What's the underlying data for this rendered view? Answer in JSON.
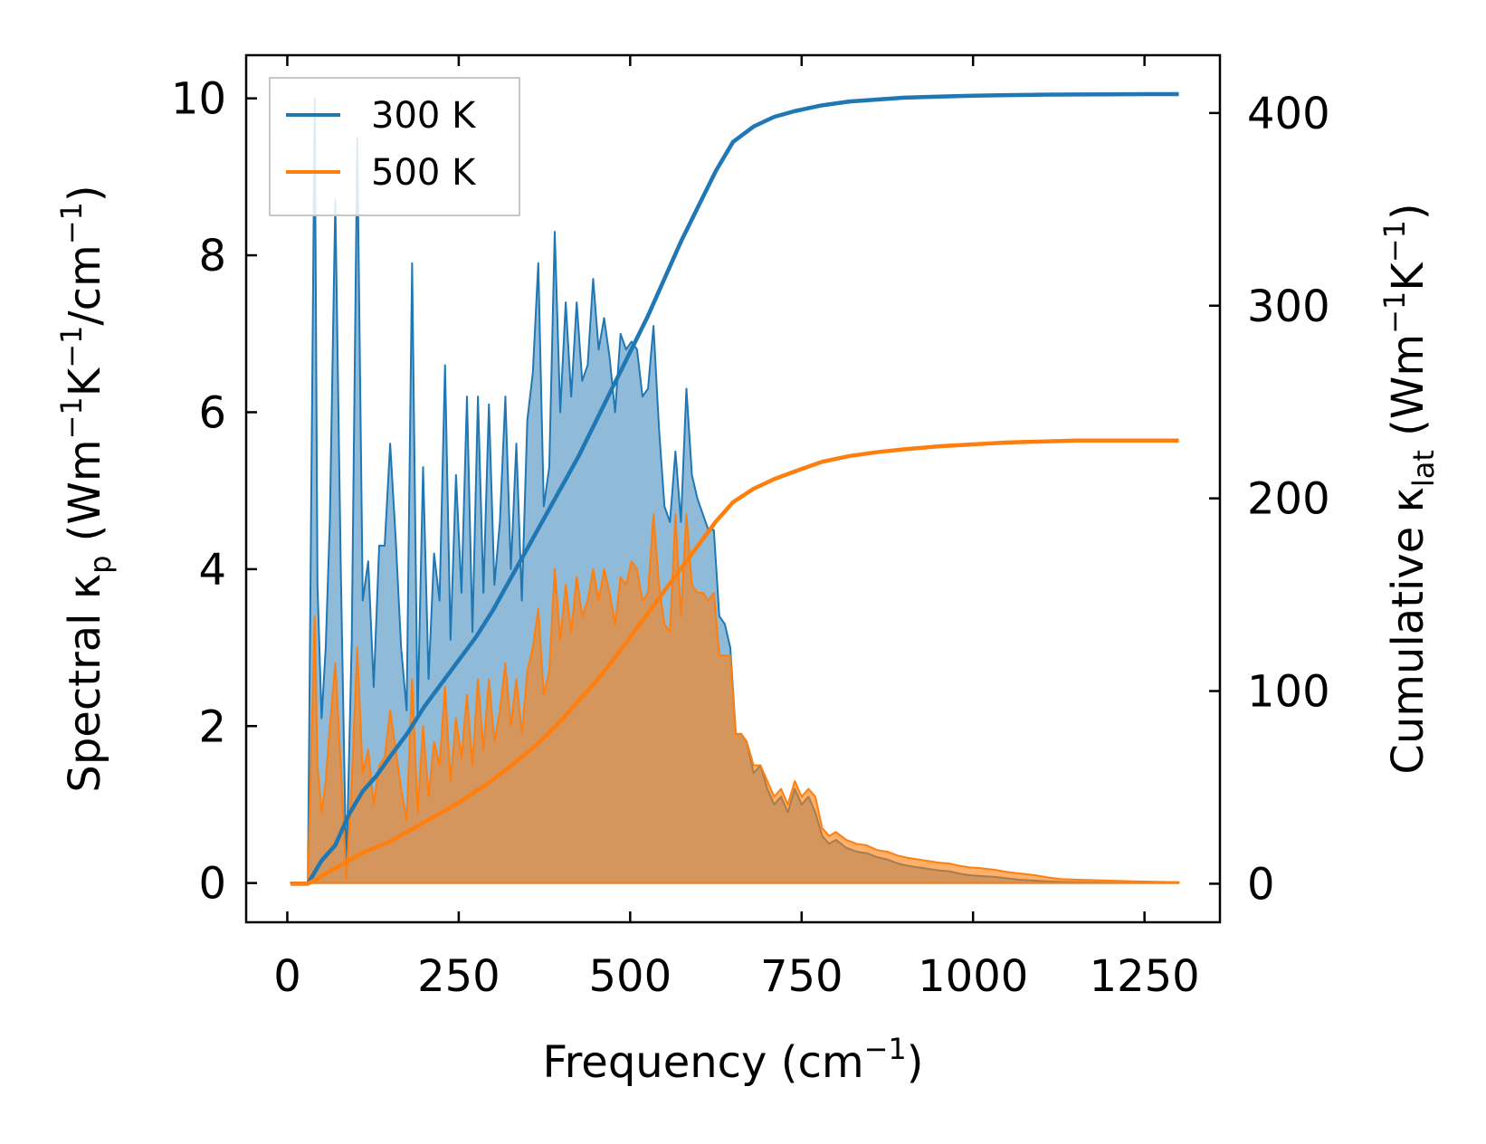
{
  "chart_data": {
    "type": "area",
    "xlabel": "Frequency (cm",
    "xlabel_sup": "−1",
    "xlabel_end": ")",
    "ylabel_left": {
      "pre": "Spectral κ",
      "sub": "p",
      "mid1": " (Wm",
      "sup1": "−1",
      "mid2": "K",
      "sup2": "−1",
      "mid3": "/cm",
      "sup3": "−1",
      "post": ")"
    },
    "ylabel_right": {
      "pre": "Cumulative κ",
      "sub": "lat",
      "mid1": " (Wm",
      "sup1": "−1",
      "mid2": "K",
      "sup2": "−1",
      "post": ")"
    },
    "xlim": [
      -60,
      1360
    ],
    "ylim_left": [
      -0.5,
      10.55
    ],
    "ylim_right": [
      -20,
      430
    ],
    "xticks": [
      0,
      250,
      500,
      750,
      1000,
      1250
    ],
    "xtick_labels": [
      "0",
      "250",
      "500",
      "750",
      "1000",
      "1250"
    ],
    "yticks_left": [
      0,
      2,
      4,
      6,
      8,
      10
    ],
    "ytick_labels_left": [
      "0",
      "2",
      "4",
      "6",
      "8",
      "10"
    ],
    "yticks_right": [
      0,
      100,
      200,
      300,
      400
    ],
    "ytick_labels_right": [
      "0",
      "100",
      "200",
      "300",
      "400"
    ],
    "legend": {
      "position": "upper-left",
      "entries": [
        {
          "label": "300 K",
          "color": "#1f77b4"
        },
        {
          "label": "500 K",
          "color": "#ff7f0e"
        }
      ]
    },
    "series": [
      {
        "name": "300 K",
        "color": "#1f77b4",
        "spectral": {
          "x": [
            5,
            30,
            40,
            44,
            50,
            56,
            62,
            70,
            78,
            86,
            94,
            102,
            110,
            118,
            126,
            134,
            142,
            150,
            158,
            166,
            174,
            182,
            190,
            198,
            206,
            214,
            222,
            230,
            238,
            246,
            254,
            262,
            270,
            278,
            286,
            294,
            302,
            310,
            318,
            326,
            334,
            342,
            350,
            358,
            366,
            374,
            382,
            390,
            398,
            406,
            414,
            422,
            430,
            438,
            446,
            454,
            462,
            470,
            478,
            486,
            494,
            502,
            510,
            518,
            526,
            534,
            542,
            550,
            558,
            566,
            574,
            582,
            590,
            598,
            606,
            614,
            622,
            630,
            638,
            646,
            654,
            662,
            670,
            680,
            690,
            700,
            710,
            720,
            730,
            740,
            750,
            760,
            770,
            780,
            790,
            800,
            815,
            830,
            845,
            860,
            875,
            890,
            905,
            920,
            935,
            950,
            965,
            980,
            995,
            1010,
            1030,
            1050,
            1070,
            1090,
            1110,
            1130,
            1160,
            1200,
            1240,
            1300
          ],
          "y": [
            0,
            0,
            10.0,
            3.8,
            2.1,
            3.0,
            4.6,
            8.7,
            4.0,
            0.1,
            3.1,
            9.5,
            3.6,
            4.1,
            2.5,
            4.3,
            4.3,
            5.6,
            4.4,
            3.0,
            2.2,
            7.9,
            2.1,
            5.3,
            2.6,
            4.2,
            3.6,
            6.6,
            3.1,
            5.2,
            3.7,
            6.2,
            3.2,
            6.2,
            3.7,
            6.1,
            3.8,
            4.6,
            6.2,
            4.0,
            5.6,
            3.6,
            5.9,
            6.5,
            7.9,
            4.8,
            5.3,
            8.3,
            6.0,
            7.4,
            6.2,
            7.4,
            6.4,
            6.6,
            7.7,
            6.8,
            7.2,
            6.7,
            6.0,
            7.0,
            6.8,
            6.9,
            6.8,
            6.2,
            6.3,
            7.1,
            5.8,
            4.8,
            4.6,
            5.5,
            4.6,
            6.3,
            5.2,
            4.9,
            4.7,
            4.5,
            4.5,
            3.4,
            3.3,
            3.0,
            1.9,
            1.9,
            1.8,
            1.4,
            1.5,
            1.2,
            1.0,
            1.1,
            0.9,
            1.2,
            1.0,
            1.1,
            0.9,
            0.6,
            0.5,
            0.55,
            0.45,
            0.4,
            0.38,
            0.33,
            0.3,
            0.25,
            0.22,
            0.2,
            0.18,
            0.16,
            0.15,
            0.12,
            0.1,
            0.09,
            0.08,
            0.06,
            0.04,
            0.03,
            0.02,
            0.015,
            0.01,
            0.005,
            0.0,
            0.0
          ]
        },
        "cumulative": {
          "x": [
            5,
            30,
            50,
            70,
            90,
            110,
            130,
            150,
            175,
            200,
            225,
            250,
            275,
            300,
            325,
            350,
            375,
            400,
            425,
            450,
            475,
            500,
            525,
            550,
            575,
            600,
            625,
            650,
            680,
            710,
            740,
            780,
            820,
            860,
            900,
            950,
            1000,
            1050,
            1100,
            1150,
            1200,
            1250,
            1300
          ],
          "y": [
            0,
            0,
            12,
            20,
            36,
            48,
            56,
            66,
            78,
            92,
            104,
            116,
            128,
            142,
            158,
            174,
            190,
            206,
            222,
            240,
            258,
            276,
            294,
            314,
            334,
            352,
            370,
            385,
            393,
            398,
            401,
            404,
            406,
            407,
            408,
            408.5,
            409,
            409.3,
            409.5,
            409.6,
            409.7,
            409.8,
            409.8
          ]
        }
      },
      {
        "name": "500 K",
        "color": "#ff7f0e",
        "spectral": {
          "x": [
            5,
            30,
            40,
            44,
            50,
            56,
            62,
            70,
            78,
            86,
            94,
            102,
            110,
            118,
            126,
            134,
            142,
            150,
            158,
            166,
            174,
            182,
            190,
            198,
            206,
            214,
            222,
            230,
            238,
            246,
            254,
            262,
            270,
            278,
            286,
            294,
            302,
            310,
            318,
            326,
            334,
            342,
            350,
            358,
            366,
            374,
            382,
            390,
            398,
            406,
            414,
            422,
            430,
            438,
            446,
            454,
            462,
            470,
            478,
            486,
            494,
            502,
            510,
            518,
            526,
            534,
            542,
            550,
            558,
            566,
            574,
            582,
            590,
            598,
            606,
            614,
            622,
            630,
            638,
            646,
            654,
            662,
            670,
            680,
            690,
            700,
            710,
            720,
            730,
            740,
            750,
            760,
            770,
            780,
            790,
            800,
            815,
            830,
            845,
            860,
            875,
            890,
            905,
            920,
            935,
            950,
            965,
            980,
            995,
            1010,
            1030,
            1050,
            1070,
            1090,
            1110,
            1130,
            1160,
            1200,
            1240,
            1300
          ],
          "y": [
            0,
            0,
            3.4,
            1.5,
            0.9,
            1.3,
            2.0,
            2.8,
            1.5,
            0.05,
            1.3,
            3.0,
            1.4,
            1.7,
            1.0,
            1.5,
            1.6,
            2.2,
            1.7,
            1.2,
            0.8,
            2.6,
            0.9,
            2.0,
            1.1,
            1.8,
            1.5,
            2.5,
            1.3,
            2.1,
            1.6,
            2.4,
            1.5,
            2.6,
            1.7,
            2.6,
            1.8,
            2.2,
            2.8,
            2.0,
            2.6,
            1.9,
            2.7,
            3.0,
            3.5,
            2.4,
            2.7,
            4.0,
            3.1,
            3.8,
            3.2,
            3.9,
            3.4,
            3.6,
            4.0,
            3.6,
            4.0,
            3.7,
            3.3,
            3.9,
            3.8,
            4.1,
            4.0,
            3.6,
            3.7,
            4.7,
            3.8,
            3.3,
            3.2,
            4.7,
            3.4,
            4.7,
            3.8,
            3.7,
            3.7,
            3.6,
            3.7,
            2.9,
            2.9,
            2.9,
            1.9,
            1.9,
            1.8,
            1.5,
            1.5,
            1.3,
            1.1,
            1.2,
            1.0,
            1.3,
            1.1,
            1.2,
            1.1,
            0.7,
            0.6,
            0.65,
            0.55,
            0.5,
            0.48,
            0.42,
            0.4,
            0.35,
            0.32,
            0.3,
            0.28,
            0.26,
            0.25,
            0.22,
            0.2,
            0.19,
            0.17,
            0.14,
            0.12,
            0.1,
            0.07,
            0.05,
            0.04,
            0.03,
            0.02,
            0.01
          ]
        },
        "cumulative": {
          "x": [
            5,
            30,
            50,
            70,
            90,
            110,
            130,
            150,
            175,
            200,
            225,
            250,
            275,
            300,
            325,
            350,
            375,
            400,
            425,
            450,
            475,
            500,
            525,
            550,
            575,
            600,
            625,
            650,
            680,
            710,
            740,
            780,
            820,
            860,
            900,
            950,
            1000,
            1050,
            1100,
            1150,
            1200,
            1250,
            1300
          ],
          "y": [
            0,
            0,
            4,
            8,
            12,
            16,
            19,
            22,
            27,
            32,
            37,
            42,
            48,
            54,
            61,
            68,
            76,
            85,
            95,
            105,
            116,
            128,
            140,
            152,
            164,
            176,
            188,
            198,
            205,
            210,
            214,
            219,
            222,
            224,
            225.5,
            227,
            228,
            229,
            229.5,
            230,
            230,
            230,
            230
          ]
        }
      }
    ]
  }
}
